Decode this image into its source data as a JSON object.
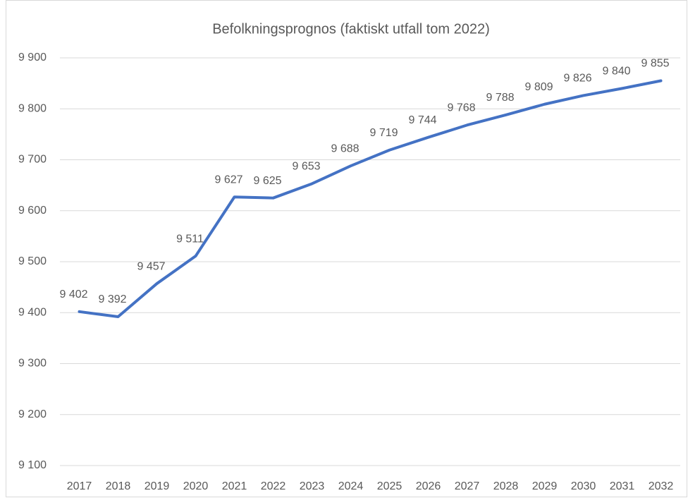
{
  "chart_data": {
    "type": "line",
    "title": "Befolkningsprognos (faktiskt utfall tom 2022)",
    "categories": [
      "2017",
      "2018",
      "2019",
      "2020",
      "2021",
      "2022",
      "2023",
      "2024",
      "2025",
      "2026",
      "2027",
      "2028",
      "2029",
      "2030",
      "2031",
      "2032"
    ],
    "values": [
      9402,
      9392,
      9457,
      9511,
      9627,
      9625,
      9653,
      9688,
      9719,
      9744,
      9768,
      9788,
      9809,
      9826,
      9840,
      9855
    ],
    "value_labels": [
      "9 402",
      "9 392",
      "9 457",
      "9 511",
      "9 627",
      "9 625",
      "9 653",
      "9 688",
      "9 719",
      "9 744",
      "9 768",
      "9 788",
      "9 809",
      "9 826",
      "9 840",
      "9 855"
    ],
    "color": "#4472c4",
    "ylim": [
      9100,
      9900
    ],
    "yticks": [
      {
        "value": 9100,
        "label": "9 100"
      },
      {
        "value": 9200,
        "label": "9 200"
      },
      {
        "value": 9300,
        "label": "9 300"
      },
      {
        "value": 9400,
        "label": "9 400"
      },
      {
        "value": 9500,
        "label": "9 500"
      },
      {
        "value": 9600,
        "label": "9 600"
      },
      {
        "value": 9700,
        "label": "9 700"
      },
      {
        "value": 9800,
        "label": "9 800"
      },
      {
        "value": 9900,
        "label": "9 900"
      }
    ],
    "grid": true
  }
}
